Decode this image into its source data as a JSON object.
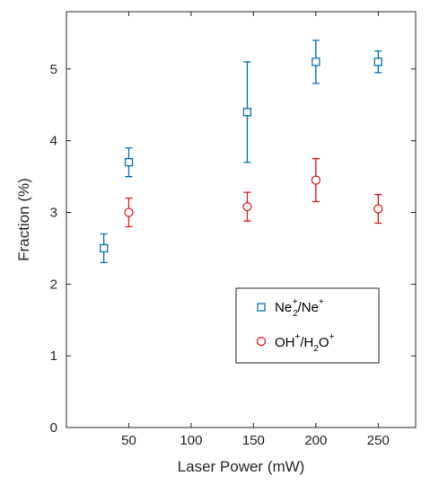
{
  "chart_data": {
    "type": "scatter",
    "xlabel": "Laser Power (mW)",
    "ylabel": "Fraction (%)",
    "xlim": [
      0,
      280
    ],
    "ylim": [
      0,
      5.8
    ],
    "xticks": [
      50,
      100,
      150,
      200,
      250
    ],
    "yticks": [
      0,
      1,
      2,
      3,
      4,
      5
    ],
    "grid": false,
    "legend_position": "lower-right",
    "series": [
      {
        "name": "Ne2+/Ne+",
        "legend_parts": [
          "Ne",
          "2",
          "+",
          "/Ne",
          "+"
        ],
        "color": "#0072BD",
        "marker": "square",
        "x": [
          30,
          50,
          145,
          200,
          250
        ],
        "y": [
          2.5,
          3.7,
          4.4,
          5.1,
          5.1
        ],
        "err_low": [
          2.3,
          3.5,
          3.7,
          4.8,
          4.95
        ],
        "err_high": [
          2.7,
          3.9,
          5.1,
          5.4,
          5.25
        ]
      },
      {
        "name": "OH+/H2O+",
        "legend_parts": [
          "OH",
          "+",
          "/H",
          "2",
          "O",
          "+"
        ],
        "color": "#E8191E",
        "marker": "circle",
        "x": [
          50,
          145,
          200,
          250
        ],
        "y": [
          3.0,
          3.08,
          3.45,
          3.05
        ],
        "err_low": [
          2.8,
          2.88,
          3.15,
          2.85
        ],
        "err_high": [
          3.2,
          3.28,
          3.75,
          3.25
        ]
      }
    ]
  }
}
